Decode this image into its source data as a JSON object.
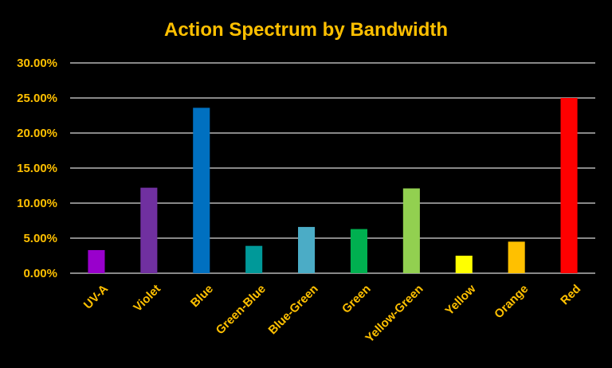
{
  "chart_data": {
    "type": "bar",
    "title": "Action Spectrum by Bandwidth",
    "xlabel": "",
    "ylabel": "",
    "categories": [
      "UV-A",
      "Violet",
      "Blue",
      "Green-Blue",
      "Blue-Green",
      "Green",
      "Yellow-Green",
      "Yellow",
      "Orange",
      "Red"
    ],
    "values": [
      3.3,
      12.2,
      23.6,
      3.9,
      6.6,
      6.3,
      12.1,
      2.5,
      4.5,
      25.0
    ],
    "colors": [
      "#9900CC",
      "#7030A0",
      "#0070C0",
      "#009999",
      "#4BACC6",
      "#00B050",
      "#92D050",
      "#FFFF00",
      "#FFC000",
      "#FF0000"
    ],
    "ylim": [
      0,
      30
    ],
    "yticks": [
      0,
      5,
      10,
      15,
      20,
      25,
      30
    ],
    "ytick_labels": [
      "0.00%",
      "5.00%",
      "10.00%",
      "15.00%",
      "20.00%",
      "25.00%",
      "30.00%"
    ],
    "grid": true,
    "legend": "none",
    "background": "#000000",
    "text_color": "#FFC000"
  }
}
